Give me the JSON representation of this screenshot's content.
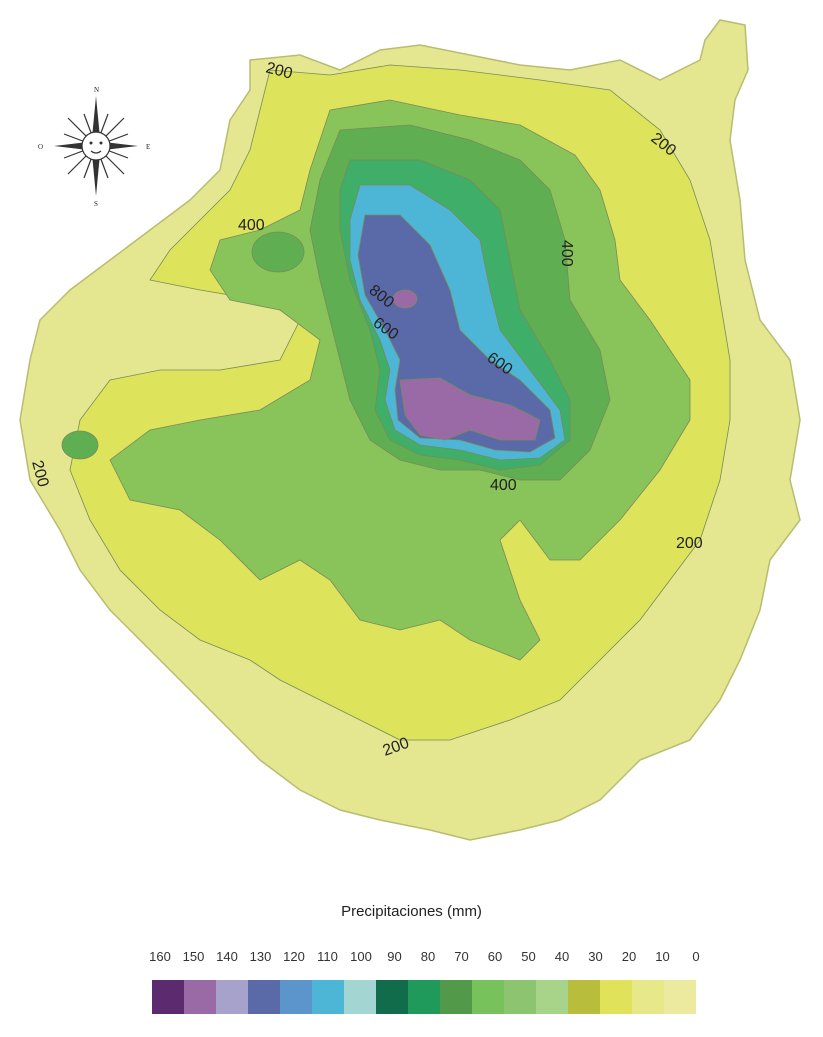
{
  "compass": {
    "north": "N",
    "south": "S",
    "east": "E",
    "west": "O"
  },
  "contour_labels": [
    "200",
    "200",
    "200",
    "200",
    "200",
    "400",
    "400",
    "400",
    "600",
    "600",
    "800"
  ],
  "legend": {
    "title": "Precipitaciones (mm)",
    "values": [
      "160",
      "150",
      "140",
      "130",
      "120",
      "110",
      "100",
      "90",
      "80",
      "70",
      "60",
      "50",
      "40",
      "30",
      "20",
      "10",
      "0"
    ],
    "colors": [
      "#5c2a6e",
      "#9a6aa6",
      "#a7a2cc",
      "#5a6aa8",
      "#5b95cc",
      "#4db6d6",
      "#a3d6d2",
      "#106c4a",
      "#1f9a5a",
      "#529a4a",
      "#78c25c",
      "#8cc470",
      "#a8d48a",
      "#b8bd3c",
      "#e0e25a",
      "#e6e88a",
      "#ecea9e"
    ]
  },
  "map_colors": {
    "outer": "#e4e690",
    "band_200": "#dde35b",
    "band_400": "#88c45a",
    "band_500": "#5fae52",
    "band_600": "#3fae68",
    "band_700": "#4db6d6",
    "band_800": "#5a6aa8",
    "band_900": "#9a6aa6"
  }
}
